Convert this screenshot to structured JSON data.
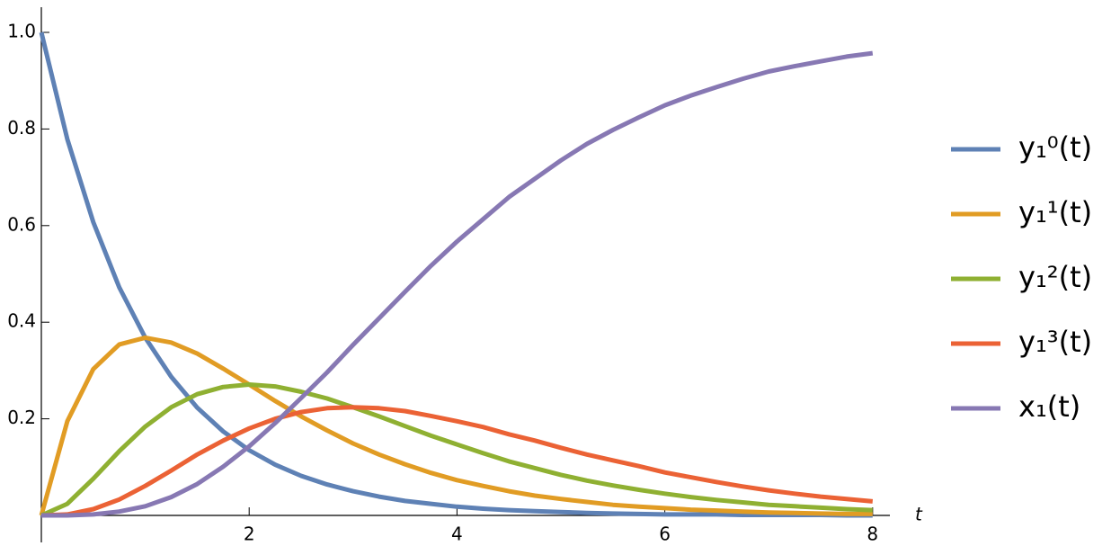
{
  "chart_data": {
    "type": "line",
    "x": [
      0,
      0.25,
      0.5,
      0.75,
      1,
      1.25,
      1.5,
      1.75,
      2,
      2.25,
      2.5,
      2.75,
      3,
      3.25,
      3.5,
      3.75,
      4,
      4.25,
      4.5,
      4.75,
      5,
      5.25,
      5.5,
      5.75,
      6,
      6.25,
      6.5,
      6.75,
      7,
      7.25,
      7.5,
      7.75,
      8
    ],
    "series": [
      {
        "name": "y₁⁰(t)",
        "color": "#5e81b5",
        "values": [
          1,
          0.779,
          0.607,
          0.472,
          0.368,
          0.287,
          0.223,
          0.174,
          0.135,
          0.105,
          0.082,
          0.064,
          0.05,
          0.039,
          0.03,
          0.024,
          0.018,
          0.014,
          0.011,
          0.009,
          0.007,
          0.005,
          0.004,
          0.003,
          0.002,
          0.002,
          0.002,
          0.001,
          0.001,
          0.001,
          0.001,
          0,
          0
        ]
      },
      {
        "name": "y₁¹(t)",
        "color": "#e19c24",
        "values": [
          0,
          0.195,
          0.303,
          0.354,
          0.368,
          0.358,
          0.335,
          0.304,
          0.271,
          0.237,
          0.205,
          0.176,
          0.149,
          0.126,
          0.106,
          0.088,
          0.073,
          0.061,
          0.05,
          0.041,
          0.034,
          0.028,
          0.022,
          0.018,
          0.015,
          0.012,
          0.01,
          0.008,
          0.006,
          0.005,
          0.004,
          0.003,
          0.003
        ]
      },
      {
        "name": "y₁²(t)",
        "color": "#8fb032",
        "values": [
          0,
          0.024,
          0.076,
          0.133,
          0.184,
          0.224,
          0.251,
          0.266,
          0.271,
          0.267,
          0.256,
          0.242,
          0.224,
          0.205,
          0.185,
          0.165,
          0.147,
          0.129,
          0.112,
          0.098,
          0.084,
          0.072,
          0.062,
          0.053,
          0.045,
          0.038,
          0.032,
          0.027,
          0.022,
          0.019,
          0.016,
          0.013,
          0.011
        ]
      },
      {
        "name": "y₁³(t)",
        "color": "#eb6235",
        "values": [
          0,
          0.002,
          0.013,
          0.033,
          0.061,
          0.093,
          0.126,
          0.155,
          0.18,
          0.2,
          0.214,
          0.222,
          0.224,
          0.222,
          0.216,
          0.206,
          0.195,
          0.183,
          0.168,
          0.155,
          0.14,
          0.126,
          0.114,
          0.102,
          0.089,
          0.079,
          0.069,
          0.06,
          0.052,
          0.045,
          0.039,
          0.034,
          0.029
        ]
      },
      {
        "name": "x₁(t)",
        "color": "#8778b3",
        "values": [
          0,
          0,
          0.002,
          0.008,
          0.019,
          0.038,
          0.065,
          0.101,
          0.143,
          0.191,
          0.243,
          0.296,
          0.353,
          0.408,
          0.463,
          0.517,
          0.567,
          0.613,
          0.659,
          0.697,
          0.735,
          0.769,
          0.798,
          0.824,
          0.849,
          0.869,
          0.887,
          0.904,
          0.919,
          0.93,
          0.94,
          0.95,
          0.957
        ]
      }
    ],
    "x_label": "t",
    "xlim": [
      0,
      8.15
    ],
    "ylim": [
      0,
      1.05
    ],
    "xticks": [
      2,
      4,
      6,
      8
    ],
    "yticks": [
      0.2,
      0.4,
      0.6,
      0.8,
      {
        "value": 1,
        "label": "1.0"
      }
    ],
    "grid": false,
    "legend": "right"
  }
}
